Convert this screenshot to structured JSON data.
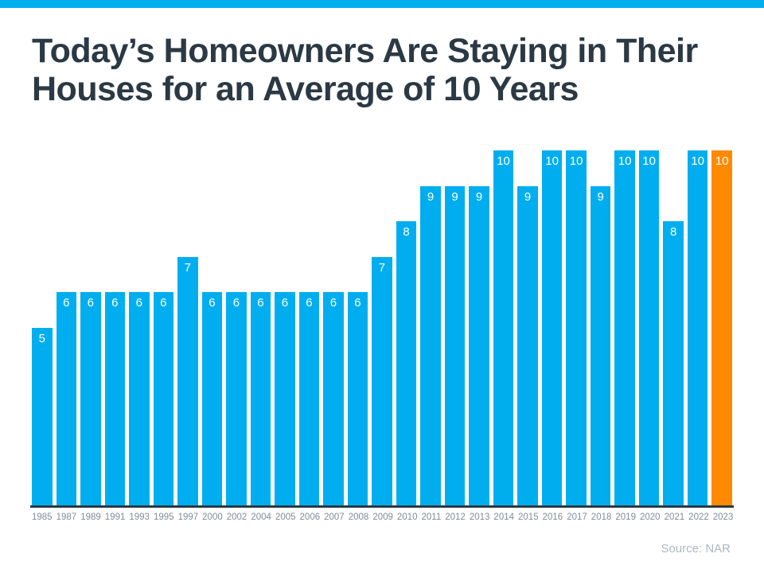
{
  "theme": {
    "accent_blue": "#00AEEF",
    "accent_orange": "#FF8A00",
    "title_color": "#2B3944",
    "axis_color": "#2B3944",
    "year_label_color": "#7F8C99",
    "source_color": "#AEB8C2"
  },
  "header": {
    "title_line1": "Today’s Homeowners Are Staying in Their",
    "title_line2": "Houses for an Average of 10 Years"
  },
  "footer": {
    "source_label": "Source: NAR"
  },
  "chart_data": {
    "type": "bar",
    "title": "Today’s Homeowners Are Staying in Their Houses for an Average of 10 Years",
    "categories": [
      "1985",
      "1987",
      "1989",
      "1991",
      "1993",
      "1995",
      "1997",
      "2000",
      "2002",
      "2004",
      "2005",
      "2006",
      "2007",
      "2008",
      "2009",
      "2010",
      "2011",
      "2012",
      "2013",
      "2014",
      "2015",
      "2016",
      "2017",
      "2018",
      "2019",
      "2020",
      "2021",
      "2022",
      "2023"
    ],
    "values": [
      5,
      6,
      6,
      6,
      6,
      6,
      7,
      6,
      6,
      6,
      6,
      6,
      6,
      6,
      7,
      8,
      9,
      9,
      9,
      10,
      9,
      10,
      10,
      9,
      10,
      10,
      8,
      10,
      10
    ],
    "xlabel": "",
    "ylabel": "",
    "ylim": [
      0,
      10
    ],
    "grid": false,
    "legend": false,
    "value_labels_shown": true,
    "bar_color": "#00AEEF",
    "highlight_color": "#FF8A00",
    "highlight_category": "2023",
    "highlight_index": 28,
    "source": "Source: NAR"
  }
}
